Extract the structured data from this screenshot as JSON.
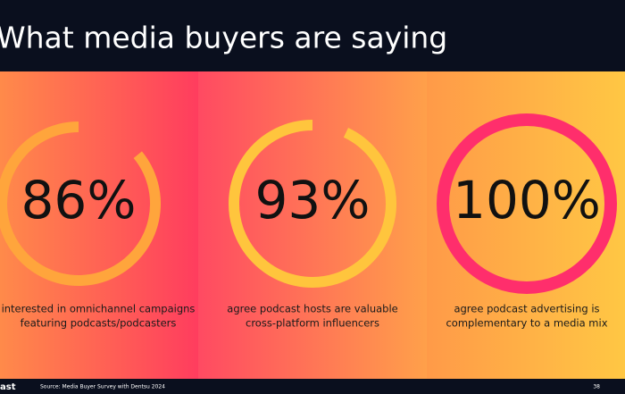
{
  "header": {
    "title": "What media buyers are saying"
  },
  "stats": [
    {
      "value": 86,
      "label": "86%",
      "lines": [
        "interested in omnichannel campaigns",
        "featuring podcasts/podcasters"
      ],
      "color": "#ffa53c"
    },
    {
      "value": 93,
      "label": "93%",
      "lines": [
        "agree podcast hosts are valuable",
        "cross-platform influencers"
      ],
      "color": "#ffc53d"
    },
    {
      "value": 100,
      "label": "100%",
      "lines": [
        "agree podcast advertising is",
        "complementary to a media mix"
      ],
      "color": "#ff2e6c"
    }
  ],
  "footer": {
    "logo": "ast",
    "source": "Source: Media Buyer Survey with Dentsu 2024",
    "page": "38"
  }
}
